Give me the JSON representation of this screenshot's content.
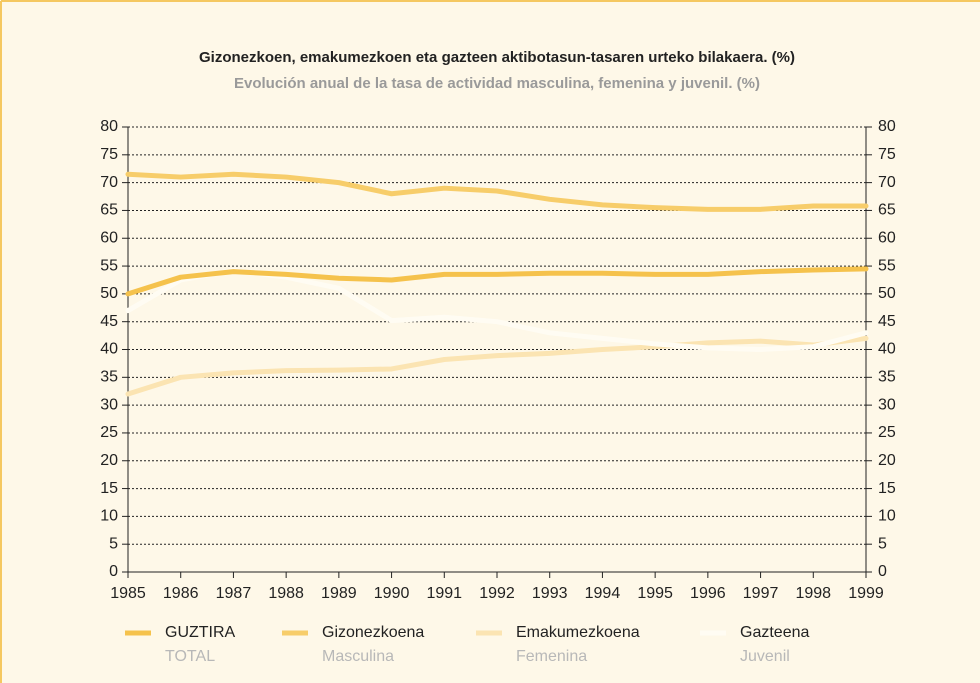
{
  "chart_data": {
    "type": "line",
    "title": "Gizonezkoen, emakumezkoen eta gazteen aktibotasun-tasaren urteko bilakaera. (%)",
    "subtitle": "Evolución anual de la tasa de actividad masculina, femenina y juvenil. (%)",
    "x": [
      1985,
      1986,
      1987,
      1988,
      1989,
      1990,
      1991,
      1992,
      1993,
      1994,
      1995,
      1996,
      1997,
      1998,
      1999
    ],
    "xlim": [
      1985,
      1999
    ],
    "xticks": [
      1985,
      1986,
      1987,
      1988,
      1989,
      1990,
      1991,
      1992,
      1993,
      1994,
      1995,
      1996,
      1997,
      1998,
      1999
    ],
    "ylim": [
      0,
      80
    ],
    "yticks": [
      0,
      5,
      10,
      15,
      20,
      25,
      30,
      35,
      40,
      45,
      50,
      55,
      60,
      65,
      70,
      75,
      80
    ],
    "grid": true,
    "series": [
      {
        "name": "GUZTIRA",
        "translation": "TOTAL",
        "color": "#f5c24c",
        "values": [
          50,
          53,
          54,
          53.5,
          52.8,
          52.5,
          53.5,
          53.5,
          53.7,
          53.7,
          53.5,
          53.5,
          54,
          54.3,
          54.5
        ]
      },
      {
        "name": "Gizonezkoena",
        "translation": "Masculina",
        "color": "#f7cd6a",
        "values": [
          71.5,
          71,
          71.5,
          71,
          70,
          68,
          69,
          68.5,
          67,
          66,
          65.5,
          65.2,
          65.2,
          65.8,
          65.8
        ]
      },
      {
        "name": "Emakumezkoena",
        "translation": "Femenina",
        "color": "#fbe4b2",
        "values": [
          32,
          35,
          35.8,
          36.2,
          36.3,
          36.5,
          38.2,
          38.9,
          39.3,
          40,
          40.5,
          41.2,
          41.5,
          40.8,
          42
        ]
      },
      {
        "name": "Gazteena",
        "translation": "Juvenil",
        "color": "#fffcf3",
        "values": [
          47,
          52.5,
          54.2,
          53,
          51,
          45.2,
          45.8,
          45,
          43,
          42,
          41,
          40.3,
          40,
          40.5,
          43
        ]
      }
    ]
  }
}
